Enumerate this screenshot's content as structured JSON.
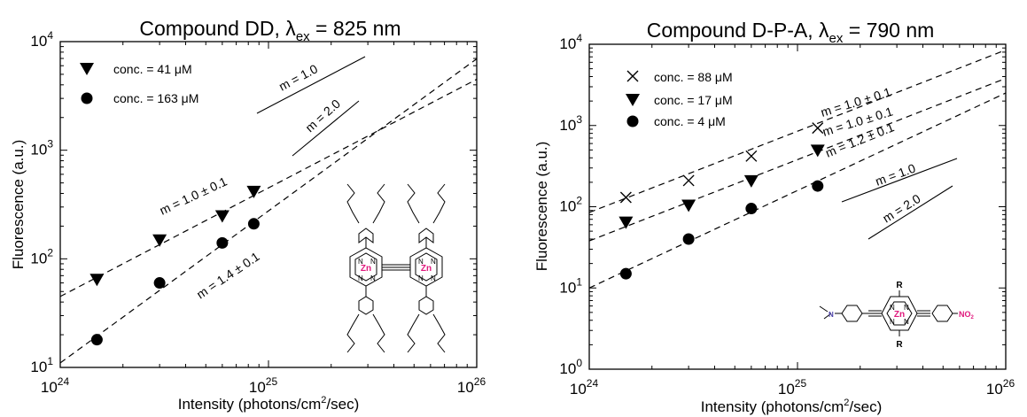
{
  "chart_data": [
    {
      "type": "scatter",
      "title": "Compound DD, λex = 825 nm",
      "title_parts": {
        "main": "Compound DD, λ",
        "sub": "ex",
        "rest": " = 825 nm"
      },
      "xlabel": "Intensity (photons/cm2/sec)",
      "xlabel_parts": {
        "before": "Intensity (photons/cm",
        "sup": "2",
        "after": "/sec)"
      },
      "ylabel": "Fluorescence (a.u.)",
      "x_scale": "log",
      "y_scale": "log",
      "xlim": [
        1e+24,
        1e+26
      ],
      "ylim": [
        10,
        10000
      ],
      "x_ticks": [
        {
          "base": "10",
          "exp": "24",
          "value": 1e+24
        },
        {
          "base": "10",
          "exp": "25",
          "value": 1e+25
        },
        {
          "base": "10",
          "exp": "26",
          "value": 1e+26
        }
      ],
      "y_ticks": [
        {
          "base": "10",
          "exp": "1",
          "value": 10
        },
        {
          "base": "10",
          "exp": "2",
          "value": 100
        },
        {
          "base": "10",
          "exp": "3",
          "value": 1000
        },
        {
          "base": "10",
          "exp": "4",
          "value": 10000
        }
      ],
      "legend_position": "top-left",
      "series": [
        {
          "name": "conc. = 41 μM",
          "marker": "triangle-down",
          "x": [
            1.5e+24,
            3e+24,
            6e+24,
            8.5e+24
          ],
          "y": [
            65,
            150,
            250,
            420
          ],
          "fit": {
            "label": "m = 1.0 ± 0.1",
            "slope": 1.0,
            "anchor": [
              1e+24,
              45
            ]
          }
        },
        {
          "name": "conc. = 163 μM",
          "marker": "circle",
          "x": [
            1.5e+24,
            3e+24,
            6e+24,
            8.5e+24
          ],
          "y": [
            18,
            60,
            140,
            210
          ],
          "fit": {
            "label": "m = 1.4 ± 0.1",
            "slope": 1.4,
            "anchor": [
              1e+24,
              11
            ]
          }
        }
      ],
      "reference_slopes": [
        {
          "label": "m = 1.0",
          "slope": 1.0
        },
        {
          "label": "m = 2.0",
          "slope": 2.0
        }
      ],
      "inset": {
        "metal_label": "Zn",
        "atom_label": "N",
        "metal_color": "#e0197d"
      }
    },
    {
      "type": "scatter",
      "title": "Compound D-P-A, λex = 790 nm",
      "title_parts": {
        "main": "Compound D-P-A, λ",
        "sub": "ex",
        "rest": " = 790 nm"
      },
      "xlabel": "Intensity (photons/cm2/sec)",
      "xlabel_parts": {
        "before": "Intensity (photons/cm",
        "sup": "2",
        "after": "/sec)"
      },
      "ylabel": "Fluorescence (a.u.)",
      "x_scale": "log",
      "y_scale": "log",
      "xlim": [
        1e+24,
        1e+26
      ],
      "ylim": [
        1,
        10000
      ],
      "x_ticks": [
        {
          "base": "10",
          "exp": "24",
          "value": 1e+24
        },
        {
          "base": "10",
          "exp": "25",
          "value": 1e+25
        },
        {
          "base": "10",
          "exp": "26",
          "value": 1e+26
        }
      ],
      "y_ticks": [
        {
          "base": "10",
          "exp": "0",
          "value": 1
        },
        {
          "base": "10",
          "exp": "1",
          "value": 10
        },
        {
          "base": "10",
          "exp": "2",
          "value": 100
        },
        {
          "base": "10",
          "exp": "3",
          "value": 1000
        },
        {
          "base": "10",
          "exp": "4",
          "value": 10000
        }
      ],
      "legend_position": "top-left",
      "series": [
        {
          "name": "conc. = 88 μM",
          "marker": "x",
          "x": [
            1.5e+24,
            3e+24,
            6e+24,
            1.25e+25
          ],
          "y": [
            130,
            210,
            420,
            930
          ],
          "fit": {
            "label": "m = 1.0 ± 0.1",
            "slope": 1.0,
            "anchor": [
              1e+24,
              85
            ]
          }
        },
        {
          "name": "conc. = 17 μM",
          "marker": "triangle-down",
          "x": [
            1.5e+24,
            3e+24,
            6e+24,
            1.25e+25
          ],
          "y": [
            65,
            105,
            210,
            500
          ],
          "fit": {
            "label": "m = 1.0 ± 0.1",
            "slope": 1.0,
            "anchor": [
              1e+24,
              38
            ]
          }
        },
        {
          "name": "conc. = 4 μM",
          "marker": "circle",
          "x": [
            1.5e+24,
            3e+24,
            6e+24,
            1.25e+25
          ],
          "y": [
            15,
            40,
            95,
            180
          ],
          "fit": {
            "label": "m = 1.2 ± 0.1",
            "slope": 1.2,
            "anchor": [
              1e+24,
              10
            ]
          }
        }
      ],
      "reference_slopes": [
        {
          "label": "m = 1.0",
          "slope": 1.0
        },
        {
          "label": "m = 2.0",
          "slope": 2.0
        }
      ],
      "inset": {
        "metal_label": "Zn",
        "atom_label": "N",
        "r_label": "R",
        "acceptor_label": "NO",
        "acceptor_sub": "2",
        "metal_color": "#e0197d",
        "acceptor_color": "#e0197d",
        "donor_color": "#4a3fa8"
      }
    }
  ]
}
